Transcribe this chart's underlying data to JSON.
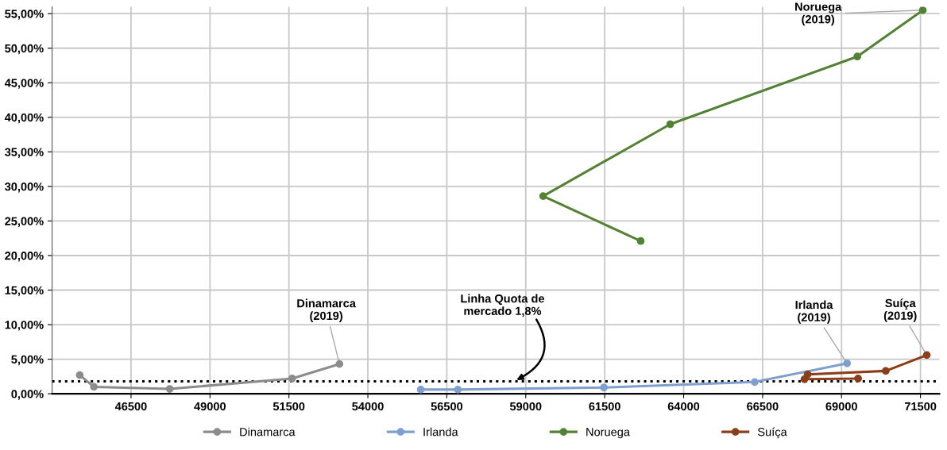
{
  "chart_data": {
    "type": "line",
    "marker": "circle",
    "line_style": "solid",
    "grid": true,
    "legend": "bottom",
    "xlim": [
      44000,
      72100
    ],
    "xticks": [
      46500,
      49000,
      51500,
      54000,
      56500,
      59000,
      61500,
      64000,
      66500,
      69000,
      71500
    ],
    "ylim": [
      0,
      56
    ],
    "yticks": [
      {
        "value": 0,
        "label": "0,00%"
      },
      {
        "value": 5,
        "label": "5,00%"
      },
      {
        "value": 10,
        "label": "10,00%"
      },
      {
        "value": 15,
        "label": "15,00%"
      },
      {
        "value": 20,
        "label": "20,00%"
      },
      {
        "value": 25,
        "label": "25,00%"
      },
      {
        "value": 30,
        "label": "30,00%"
      },
      {
        "value": 35,
        "label": "35,00%"
      },
      {
        "value": 40,
        "label": "40,00%"
      },
      {
        "value": 45,
        "label": "45,00%"
      },
      {
        "value": 50,
        "label": "50,00%"
      },
      {
        "value": 55,
        "label": "55,00%"
      }
    ],
    "series": [
      {
        "name": "Dinamarca",
        "color": "#8c8c8c",
        "x": [
          44875,
          45325,
          47725,
          51600,
          53100
        ],
        "values": [
          2.7,
          1.0,
          0.7,
          2.2,
          4.3
        ]
      },
      {
        "name": "Irlanda",
        "color": "#7f9fcf",
        "x": [
          55675,
          56850,
          61475,
          66250,
          69175
        ],
        "values": [
          0.6,
          0.6,
          0.9,
          1.7,
          4.4
        ]
      },
      {
        "name": "Noruega",
        "color": "#548235",
        "x": [
          62640,
          59550,
          63575,
          69500,
          71575
        ],
        "values": [
          22.1,
          28.6,
          39.0,
          48.8,
          55.5
        ]
      },
      {
        "name": "Suíça",
        "color": "#8b3e1a",
        "x": [
          69525,
          67825,
          67925,
          70400,
          71700
        ],
        "values": [
          2.2,
          2.1,
          2.8,
          3.3,
          5.6
        ]
      }
    ],
    "ref_lines": [
      {
        "axis": "y",
        "value": 1.8,
        "label": "Linha Quota de\nmercado 1,8%",
        "color": "#000000",
        "line_style": "dotted"
      }
    ],
    "annotations": [
      {
        "text": "Dinamarca\n(2019)",
        "x": 53100,
        "y": 4.3
      },
      {
        "text": "Irlanda\n(2019)",
        "x": 69175,
        "y": 4.4
      },
      {
        "text": "Noruega\n(2019)",
        "x": 71575,
        "y": 55.5
      },
      {
        "text": "Suíça\n(2019)",
        "x": 71700,
        "y": 5.6
      }
    ]
  }
}
